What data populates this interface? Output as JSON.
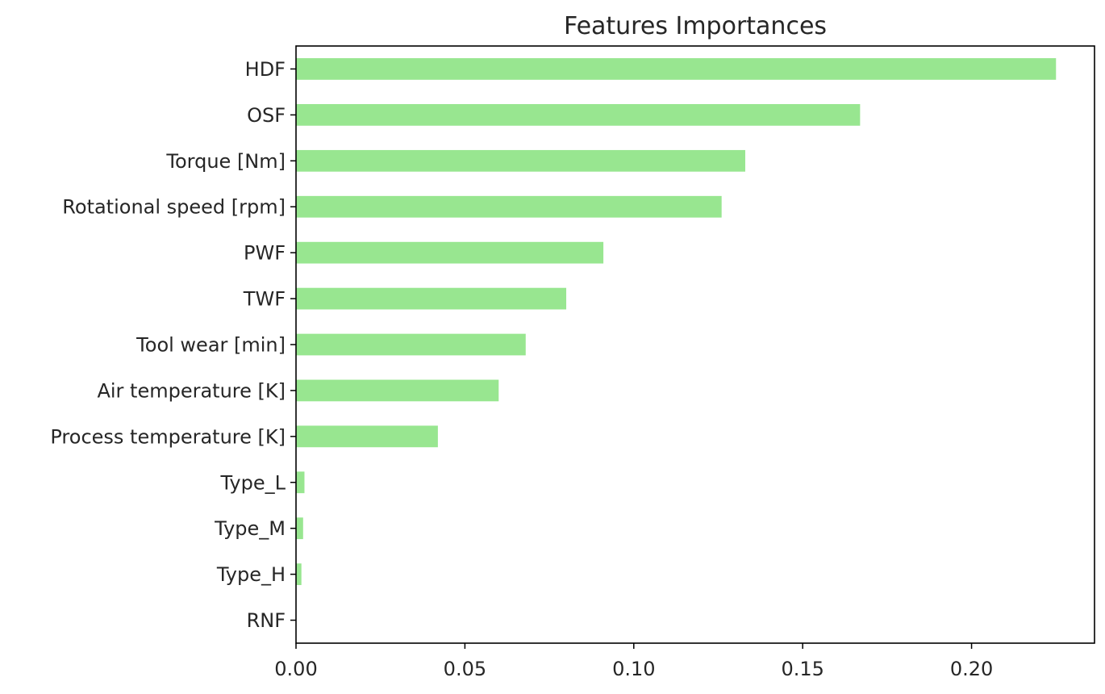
{
  "chart_data": {
    "type": "bar",
    "orientation": "horizontal",
    "title": "Features Importances",
    "xlabel": "",
    "ylabel": "",
    "categories": [
      "HDF",
      "OSF",
      "Torque [Nm]",
      "Rotational speed [rpm]",
      "PWF",
      "TWF",
      "Tool wear [min]",
      "Air temperature [K]",
      "Process temperature [K]",
      "Type_L",
      "Type_M",
      "Type_H",
      "RNF"
    ],
    "values": [
      0.225,
      0.167,
      0.133,
      0.126,
      0.091,
      0.08,
      0.068,
      0.06,
      0.042,
      0.0025,
      0.0021,
      0.0016,
      0.0
    ],
    "xticks": [
      0.0,
      0.05,
      0.1,
      0.15,
      0.2
    ],
    "xtick_labels": [
      "0.00",
      "0.05",
      "0.10",
      "0.15",
      "0.20"
    ],
    "xlim": [
      0.0,
      0.2364
    ],
    "grid": false,
    "bar_color": "#98e690"
  }
}
